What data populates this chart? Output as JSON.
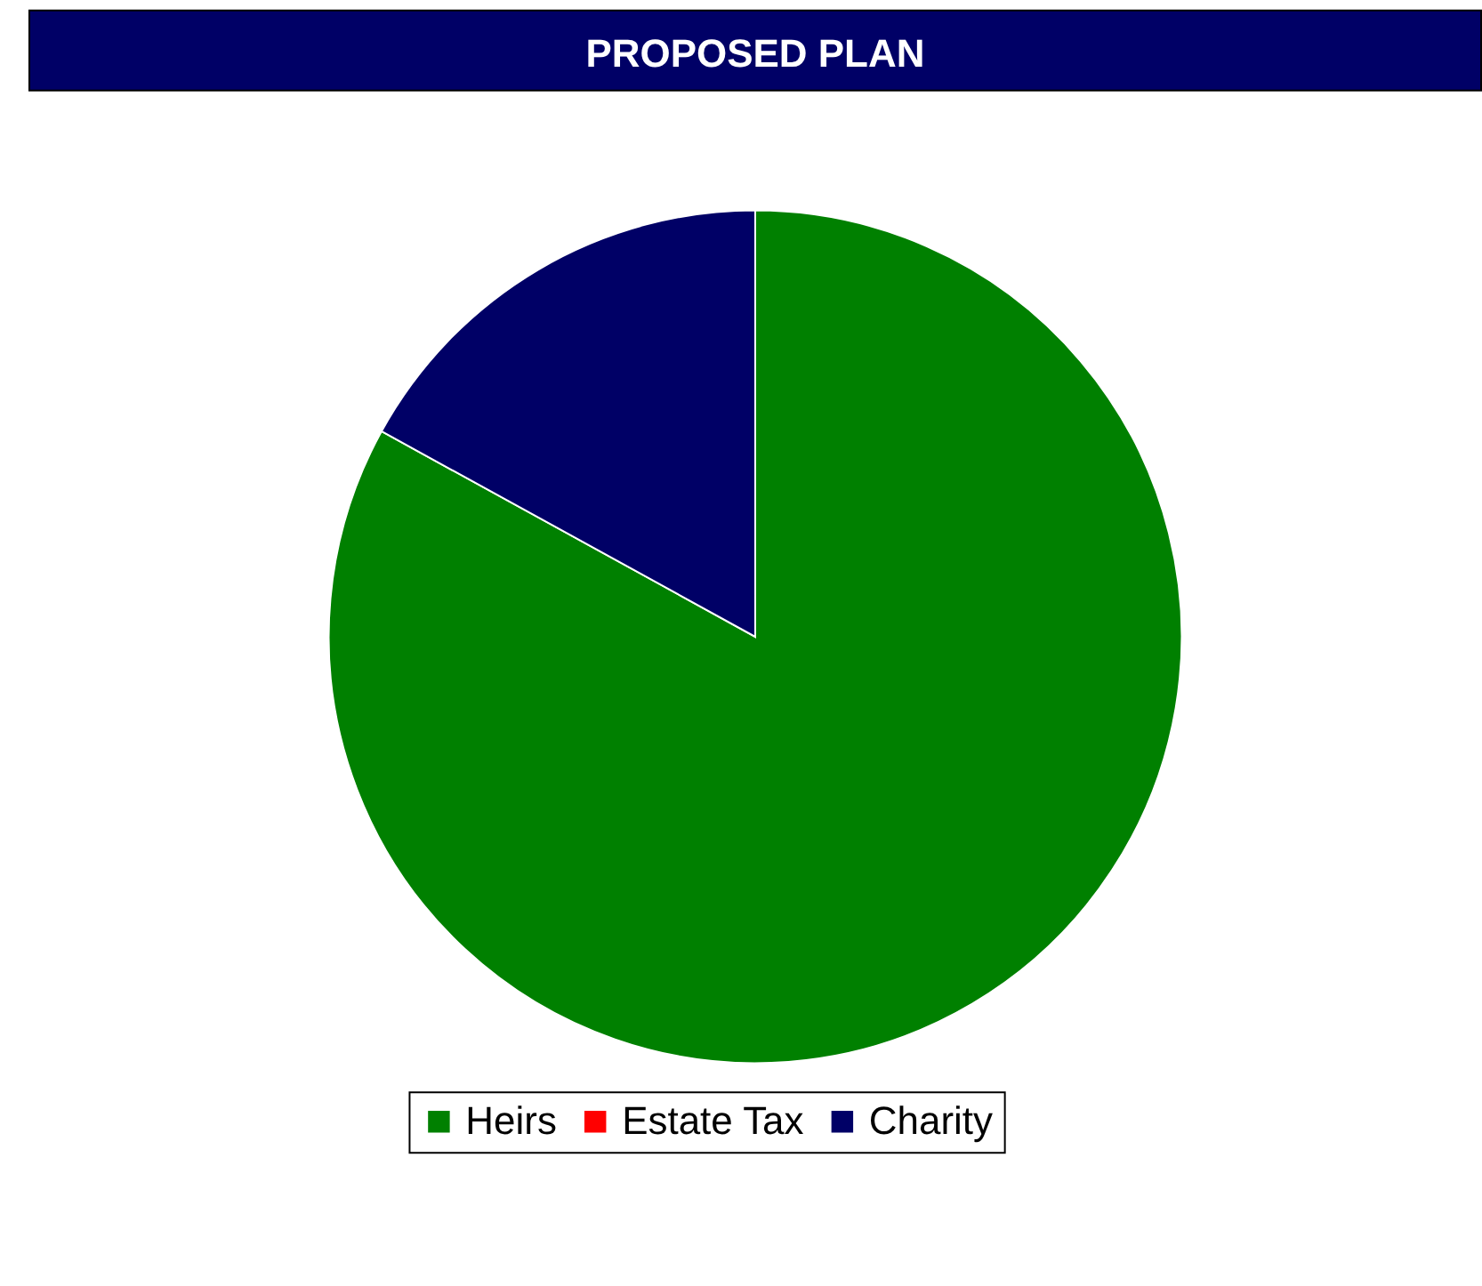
{
  "chart_data": {
    "type": "pie",
    "title": "PROPOSED PLAN",
    "categories": [
      "Heirs",
      "Estate Tax",
      "Charity"
    ],
    "values": [
      83,
      0,
      17
    ],
    "colors": [
      "#008000",
      "#ff0000",
      "#000066"
    ],
    "legend": "bottom"
  }
}
